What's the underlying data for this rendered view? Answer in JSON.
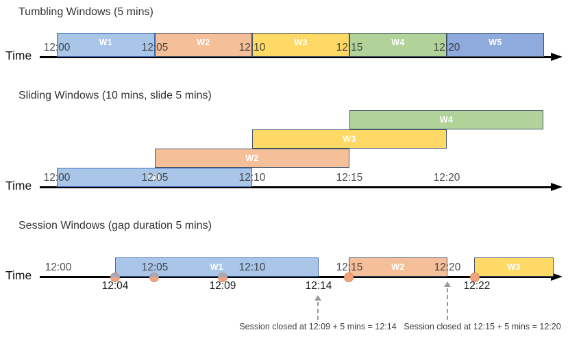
{
  "colors": {
    "window_blue": "#A9C6E8",
    "window_orange": "#F5BF99",
    "window_yellow": "#FFD966",
    "window_green": "#B1D39A",
    "window_periwinkle": "#8FAADC",
    "event_dot": "#F1A47B",
    "axis": "#000000",
    "dashed_arrow": "#9a9a9a"
  },
  "sections": [
    {
      "id": "tumbling",
      "title": "Tumbling Windows (5 mins)",
      "axis_label": "Time",
      "ticks": [
        "12:00",
        "12:05",
        "12:10",
        "12:15",
        "12:20"
      ],
      "windows": [
        {
          "label": "W1",
          "start": "12:00",
          "end": "12:05",
          "color": "blue"
        },
        {
          "label": "W2",
          "start": "12:05",
          "end": "12:10",
          "color": "orange"
        },
        {
          "label": "W3",
          "start": "12:10",
          "end": "12:15",
          "color": "yellow"
        },
        {
          "label": "W4",
          "start": "12:15",
          "end": "12:20",
          "color": "green"
        },
        {
          "label": "W5",
          "start": "12:20",
          "end": "",
          "color": "periwinkle"
        }
      ]
    },
    {
      "id": "sliding",
      "title": "Sliding Windows (10 mins, slide 5 mins)",
      "axis_label": "Time",
      "ticks": [
        "12:00",
        "12:05",
        "12:10",
        "12:15",
        "12:20"
      ],
      "windows": [
        {
          "label": "W1",
          "start": "12:00",
          "end": "12:10",
          "color": "blue"
        },
        {
          "label": "W2",
          "start": "12:05",
          "end": "12:15",
          "color": "orange"
        },
        {
          "label": "W3",
          "start": "12:10",
          "end": "12:20",
          "color": "yellow"
        },
        {
          "label": "W4",
          "start": "12:15",
          "end": "",
          "color": "green"
        }
      ]
    },
    {
      "id": "session",
      "title": "Session Windows (gap duration 5 mins)",
      "axis_label": "Time",
      "ticks": [
        "12:00",
        "12:05",
        "12:10",
        "12:15",
        "12:20"
      ],
      "windows": [
        {
          "label": "W1",
          "start": "12:04",
          "end": "12:14",
          "color": "blue"
        },
        {
          "label": "W2",
          "start": "12:15",
          "end": "12:20",
          "color": "orange"
        },
        {
          "label": "W3",
          "start": "12:22",
          "end": "",
          "color": "yellow"
        }
      ],
      "below_axis_labels": [
        "12:04",
        "12:09",
        "12:14",
        "12:22"
      ],
      "annotations": [
        "Session closed at 12:09 + 5 mins = 12:14",
        "Session closed at 12:15 + 5 mins = 12:20"
      ]
    }
  ]
}
